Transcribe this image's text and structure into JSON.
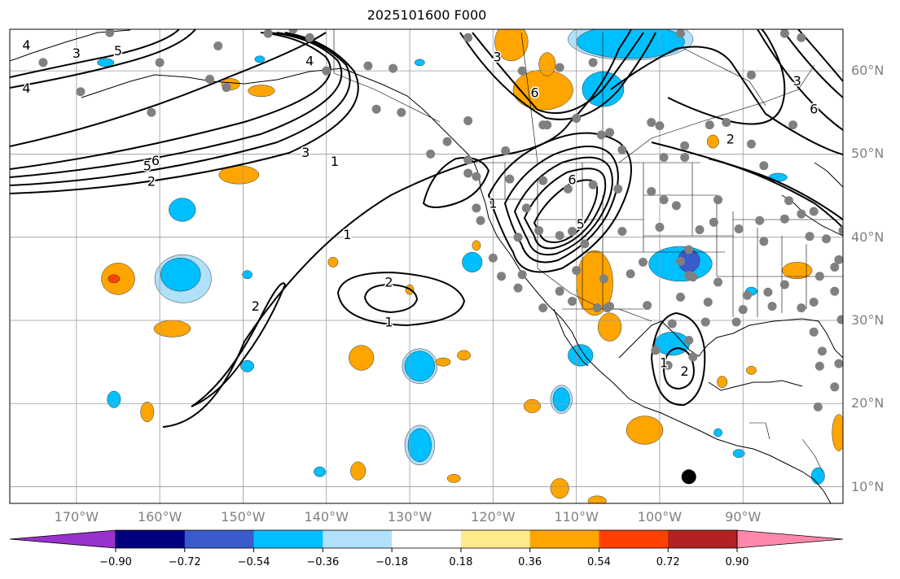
{
  "title": "2025101600 F000",
  "map": {
    "lat_range": [
      8,
      65
    ],
    "lon_range": [
      -178,
      -78
    ],
    "lat_ticks": [
      {
        "lat": 60,
        "label": "60°N"
      },
      {
        "lat": 50,
        "label": "50°N"
      },
      {
        "lat": 40,
        "label": "40°N"
      },
      {
        "lat": 30,
        "label": "30°N"
      },
      {
        "lat": 20,
        "label": "20°N"
      },
      {
        "lat": 10,
        "label": "10°N"
      }
    ],
    "lon_ticks": [
      {
        "lon": -170,
        "label": "170°W"
      },
      {
        "lon": -160,
        "label": "160°W"
      },
      {
        "lon": -150,
        "label": "150°W"
      },
      {
        "lon": -140,
        "label": "140°W"
      },
      {
        "lon": -130,
        "label": "130°W"
      },
      {
        "lon": -120,
        "label": "120°W"
      },
      {
        "lon": -110,
        "label": "110°W"
      },
      {
        "lon": -100,
        "label": "100°W"
      },
      {
        "lon": -90,
        "label": "90°W"
      }
    ],
    "grid": true,
    "contour_labels": [
      {
        "text": "4",
        "lon": -176,
        "lat": 63
      },
      {
        "text": "3",
        "lon": -170,
        "lat": 62
      },
      {
        "text": "5",
        "lon": -165,
        "lat": 62.3
      },
      {
        "text": "4",
        "lon": -176,
        "lat": 57.8
      },
      {
        "text": "4",
        "lon": -142,
        "lat": 61.1
      },
      {
        "text": "5",
        "lon": -161.5,
        "lat": 48.5
      },
      {
        "text": "6",
        "lon": -160.5,
        "lat": 49.1
      },
      {
        "text": "2",
        "lon": -161,
        "lat": 46.6
      },
      {
        "text": "3",
        "lon": -142.5,
        "lat": 50.1
      },
      {
        "text": "1",
        "lon": -139,
        "lat": 49
      },
      {
        "text": "1",
        "lon": -137.5,
        "lat": 40.2
      },
      {
        "text": "2",
        "lon": -148.5,
        "lat": 31.6
      },
      {
        "text": "2",
        "lon": -132.5,
        "lat": 34.5
      },
      {
        "text": "1",
        "lon": -132.5,
        "lat": 29.7
      },
      {
        "text": "3",
        "lon": -119.5,
        "lat": 61.6
      },
      {
        "text": "6",
        "lon": -115,
        "lat": 57.3
      },
      {
        "text": "1",
        "lon": -120,
        "lat": 44
      },
      {
        "text": "6",
        "lon": -110.5,
        "lat": 46.8
      },
      {
        "text": "5",
        "lon": -109.5,
        "lat": 41.5
      },
      {
        "text": "2",
        "lon": -91.5,
        "lat": 51.7
      },
      {
        "text": "3",
        "lon": -83.5,
        "lat": 58.7
      },
      {
        "text": "6",
        "lon": -81.5,
        "lat": 55.3
      },
      {
        "text": "1",
        "lon": -99.5,
        "lat": 24.8
      },
      {
        "text": "2",
        "lon": -97,
        "lat": 23.8
      }
    ],
    "shaded_regions": [
      {
        "level": 0.45,
        "lon": -165,
        "lat": 35,
        "rx": 2,
        "ry": 1.9
      },
      {
        "level": 0.63,
        "lon": -165.5,
        "lat": 35,
        "rx": 0.7,
        "ry": 0.5
      },
      {
        "level": -0.45,
        "lon": -157.5,
        "lat": 35.5,
        "rx": 2.4,
        "ry": 2
      },
      {
        "level": -0.27,
        "lon": -157.2,
        "lat": 35,
        "rx": 3.4,
        "ry": 2.9
      },
      {
        "level": -0.45,
        "lon": -157.3,
        "lat": 43.3,
        "rx": 1.6,
        "ry": 1.4
      },
      {
        "level": 0.45,
        "lon": -150.5,
        "lat": 47.5,
        "rx": 2.4,
        "ry": 1.1
      },
      {
        "level": 0.45,
        "lon": -158.5,
        "lat": 29,
        "rx": 2.2,
        "ry": 1
      },
      {
        "level": -0.45,
        "lon": -165.5,
        "lat": 20.5,
        "rx": 0.8,
        "ry": 1
      },
      {
        "level": 0.45,
        "lon": -161.5,
        "lat": 19,
        "rx": 0.8,
        "ry": 1.2
      },
      {
        "level": -0.45,
        "lon": -149.5,
        "lat": 24.5,
        "rx": 0.8,
        "ry": 0.7
      },
      {
        "level": -0.45,
        "lon": -149.5,
        "lat": 35.5,
        "rx": 0.6,
        "ry": 0.5
      },
      {
        "level": 0.45,
        "lon": -135.8,
        "lat": 25.5,
        "rx": 1.5,
        "ry": 1.5
      },
      {
        "level": -0.45,
        "lon": -128.8,
        "lat": 24.5,
        "rx": 1.8,
        "ry": 1.8
      },
      {
        "level": -0.27,
        "lon": -128.8,
        "lat": 24.5,
        "rx": 2.1,
        "ry": 2.1
      },
      {
        "level": 0.45,
        "lon": -123.5,
        "lat": 25.8,
        "rx": 0.8,
        "ry": 0.6
      },
      {
        "level": 0.45,
        "lon": -126,
        "lat": 25,
        "rx": 0.9,
        "ry": 0.5
      },
      {
        "level": -0.45,
        "lon": -128.8,
        "lat": 15,
        "rx": 1.4,
        "ry": 2
      },
      {
        "level": -0.27,
        "lon": -128.8,
        "lat": 15,
        "rx": 1.8,
        "ry": 2.4
      },
      {
        "level": 0.45,
        "lon": -136.2,
        "lat": 11.9,
        "rx": 0.9,
        "ry": 1.1
      },
      {
        "level": 0.45,
        "lon": -124.7,
        "lat": 11,
        "rx": 0.8,
        "ry": 0.5
      },
      {
        "level": -0.45,
        "lon": -140.8,
        "lat": 11.8,
        "rx": 0.7,
        "ry": 0.6
      },
      {
        "level": 0.45,
        "lon": -139.2,
        "lat": 37,
        "rx": 0.6,
        "ry": 0.6
      },
      {
        "level": 0.45,
        "lon": -130,
        "lat": 33.7,
        "rx": 0.5,
        "ry": 0.6
      },
      {
        "level": -0.45,
        "lon": -122.5,
        "lat": 37,
        "rx": 1.2,
        "ry": 1.2
      },
      {
        "level": 0.45,
        "lon": -122,
        "lat": 39,
        "rx": 0.5,
        "ry": 0.6
      },
      {
        "level": 0.45,
        "lon": -107.8,
        "lat": 34.5,
        "rx": 2.2,
        "ry": 3.9
      },
      {
        "level": 0.45,
        "lon": -106,
        "lat": 29.2,
        "rx": 1.4,
        "ry": 1.7
      },
      {
        "level": -0.45,
        "lon": -97.5,
        "lat": 36.8,
        "rx": 3.8,
        "ry": 2.1
      },
      {
        "level": -0.63,
        "lon": -96.5,
        "lat": 37.2,
        "rx": 1.3,
        "ry": 1.4
      },
      {
        "level": -0.45,
        "lon": -98.5,
        "lat": 27.2,
        "rx": 2.1,
        "ry": 1.4
      },
      {
        "level": -0.45,
        "lon": -109.5,
        "lat": 25.8,
        "rx": 1.5,
        "ry": 1.3
      },
      {
        "level": -0.45,
        "lon": -111.8,
        "lat": 20.5,
        "rx": 1,
        "ry": 1.4
      },
      {
        "level": -0.27,
        "lon": -111.8,
        "lat": 20.5,
        "rx": 1.3,
        "ry": 1.7
      },
      {
        "level": 0.45,
        "lon": -115.3,
        "lat": 19.7,
        "rx": 1,
        "ry": 0.8
      },
      {
        "level": 0.45,
        "lon": -101.8,
        "lat": 16.8,
        "rx": 2.2,
        "ry": 1.7
      },
      {
        "level": 0.45,
        "lon": -112,
        "lat": 9.8,
        "rx": 1.1,
        "ry": 1.2
      },
      {
        "level": 0.45,
        "lon": -107.5,
        "lat": 8.3,
        "rx": 1.1,
        "ry": 0.6
      },
      {
        "level": -0.45,
        "lon": -93,
        "lat": 16.5,
        "rx": 0.5,
        "ry": 0.5
      },
      {
        "level": -0.45,
        "lon": -90.5,
        "lat": 14,
        "rx": 0.7,
        "ry": 0.5
      },
      {
        "level": -0.45,
        "lon": -81,
        "lat": 11.3,
        "rx": 0.8,
        "ry": 1
      },
      {
        "level": -0.45,
        "lon": -89,
        "lat": 33.5,
        "rx": 0.7,
        "ry": 0.5
      },
      {
        "level": 0.45,
        "lon": -92.5,
        "lat": 22.6,
        "rx": 0.6,
        "ry": 0.7
      },
      {
        "level": 0.45,
        "lon": -89,
        "lat": 24,
        "rx": 0.6,
        "ry": 0.5
      },
      {
        "level": 0.45,
        "lon": -83.5,
        "lat": 36,
        "rx": 1.8,
        "ry": 1
      },
      {
        "level": 0.45,
        "lon": -78.5,
        "lat": 16.5,
        "rx": 0.8,
        "ry": 2.2
      },
      {
        "level": -0.45,
        "lon": -85.8,
        "lat": 47.2,
        "rx": 1.1,
        "ry": 0.5
      },
      {
        "level": 0.45,
        "lon": -93.6,
        "lat": 51.5,
        "rx": 0.7,
        "ry": 0.8
      },
      {
        "level": 0.45,
        "lon": -117.8,
        "lat": 63.5,
        "rx": 2,
        "ry": 2.3
      },
      {
        "level": 0.45,
        "lon": -114,
        "lat": 57.7,
        "rx": 3.6,
        "ry": 2.4
      },
      {
        "level": 0.45,
        "lon": -113.5,
        "lat": 60.8,
        "rx": 1,
        "ry": 1.4
      },
      {
        "level": -0.45,
        "lon": -103.5,
        "lat": 63.5,
        "rx": 6.5,
        "ry": 2
      },
      {
        "level": -0.27,
        "lon": -103.5,
        "lat": 63.8,
        "rx": 7.5,
        "ry": 2.5
      },
      {
        "level": -0.45,
        "lon": -106.8,
        "lat": 57.8,
        "rx": 2.5,
        "ry": 2.1
      },
      {
        "level": 0.45,
        "lon": -147.8,
        "lat": 57.6,
        "rx": 1.6,
        "ry": 0.7
      },
      {
        "level": 0.45,
        "lon": -151.5,
        "lat": 58.4,
        "rx": 1.1,
        "ry": 0.7
      },
      {
        "level": -0.45,
        "lon": -166.5,
        "lat": 61,
        "rx": 1,
        "ry": 0.5
      },
      {
        "level": -0.45,
        "lon": -148,
        "lat": 61.4,
        "rx": 0.6,
        "ry": 0.4
      },
      {
        "level": -0.45,
        "lon": -128.8,
        "lat": 61,
        "rx": 0.6,
        "ry": 0.4
      }
    ],
    "stations": [
      [
        -174,
        61
      ],
      [
        -166,
        64.6
      ],
      [
        -160,
        61
      ],
      [
        -153,
        63
      ],
      [
        -147,
        64.5
      ],
      [
        -144,
        65
      ],
      [
        -142,
        64
      ],
      [
        -169.5,
        57.5
      ],
      [
        -161,
        55
      ],
      [
        -154,
        59
      ],
      [
        -152,
        58
      ],
      [
        -140,
        60
      ],
      [
        -135,
        60.6
      ],
      [
        -132,
        60.3
      ],
      [
        -123,
        64
      ],
      [
        -116.5,
        60
      ],
      [
        -112,
        60.4
      ],
      [
        -108,
        61
      ],
      [
        -97.5,
        64.5
      ],
      [
        -85,
        64.5
      ],
      [
        -83,
        64
      ],
      [
        -89,
        59.5
      ],
      [
        -134,
        55.4
      ],
      [
        -131,
        55
      ],
      [
        -123,
        54
      ],
      [
        -125.5,
        51.5
      ],
      [
        -127.5,
        50
      ],
      [
        -123,
        49.3
      ],
      [
        -118.5,
        50.4
      ],
      [
        -114,
        53.5
      ],
      [
        -113.5,
        53.5
      ],
      [
        -110,
        54.3
      ],
      [
        -107,
        52.3
      ],
      [
        -106,
        52.6
      ],
      [
        -104.5,
        50.5
      ],
      [
        -101,
        53.8
      ],
      [
        -100,
        53.4
      ],
      [
        -97,
        51
      ],
      [
        -99.5,
        49.6
      ],
      [
        -97,
        49.6
      ],
      [
        -94,
        53.5
      ],
      [
        -92,
        53.8
      ],
      [
        -89,
        51.2
      ],
      [
        -84,
        53.5
      ],
      [
        -87.5,
        48.6
      ],
      [
        -123,
        47.7
      ],
      [
        -122,
        47.3
      ],
      [
        -118,
        47
      ],
      [
        -116,
        43.5
      ],
      [
        -114,
        46.8
      ],
      [
        -111,
        45.8
      ],
      [
        -108,
        46.3
      ],
      [
        -105,
        45.8
      ],
      [
        -101,
        45.5
      ],
      [
        -99.5,
        44.5
      ],
      [
        -122,
        43.5
      ],
      [
        -121.5,
        42
      ],
      [
        -117,
        40
      ],
      [
        -114.5,
        40.8
      ],
      [
        -112,
        40.2
      ],
      [
        -110.5,
        40.7
      ],
      [
        -109,
        39.2
      ],
      [
        -104.5,
        40.7
      ],
      [
        -100,
        41.2
      ],
      [
        -98,
        43.8
      ],
      [
        -95.2,
        40.9
      ],
      [
        -93,
        44.5
      ],
      [
        -96.5,
        38.5
      ],
      [
        -93.5,
        41.8
      ],
      [
        -90.5,
        41
      ],
      [
        -88,
        42
      ],
      [
        -85,
        42.2
      ],
      [
        -83,
        42.8
      ],
      [
        -81.5,
        43.1
      ],
      [
        -82,
        40.1
      ],
      [
        -87.5,
        39.5
      ],
      [
        -80,
        39.8
      ],
      [
        -78,
        40.8
      ],
      [
        -120,
        37.5
      ],
      [
        -119,
        35.3
      ],
      [
        -117,
        33.9
      ],
      [
        -116.5,
        35.5
      ],
      [
        -112,
        33.5
      ],
      [
        -110.5,
        32.3
      ],
      [
        -106.7,
        35
      ],
      [
        -103.5,
        35.6
      ],
      [
        -101.5,
        31.8
      ],
      [
        -97.5,
        32.8
      ],
      [
        -98.5,
        29.6
      ],
      [
        -94.2,
        32.2
      ],
      [
        -93,
        34.6
      ],
      [
        -89.5,
        33
      ],
      [
        -87,
        33.4
      ],
      [
        -85,
        34.3
      ],
      [
        -90.8,
        29.8
      ],
      [
        -90,
        31.3
      ],
      [
        -86.5,
        31.7
      ],
      [
        -83,
        31.5
      ],
      [
        -81.5,
        32.2
      ],
      [
        -79,
        33.5
      ],
      [
        -81.5,
        28.6
      ],
      [
        -80.5,
        26.3
      ],
      [
        -80.8,
        24.5
      ],
      [
        -78.5,
        24.8
      ],
      [
        -94.5,
        29.8
      ],
      [
        -96.5,
        27.6
      ],
      [
        -96,
        25.6
      ],
      [
        -99,
        24.6
      ],
      [
        -100.5,
        26.4
      ],
      [
        -106.3,
        31.5
      ],
      [
        -106,
        31.7
      ],
      [
        -114,
        31.5
      ],
      [
        -107.5,
        31.5
      ],
      [
        -81,
        19.6
      ],
      [
        -79,
        22
      ],
      [
        -78.5,
        37.3
      ],
      [
        -79,
        36.4
      ],
      [
        -80.8,
        35.3
      ],
      [
        -110,
        36
      ],
      [
        -97.5,
        37.1
      ],
      [
        -96.5,
        35.4
      ],
      [
        -96,
        35.2
      ],
      [
        -102,
        37
      ],
      [
        -84.5,
        44.4
      ],
      [
        -78.2,
        30.1
      ]
    ],
    "marker": {
      "lon": -96.5,
      "lat": 11.2
    }
  },
  "colorbar": {
    "colors": [
      "#9932cc",
      "#000080",
      "#3a5bcc",
      "#00bfff",
      "#b0e0fa",
      "#ffffff",
      "#ffeb8a",
      "#ffa500",
      "#ff4000",
      "#b22222",
      "#ff88aa"
    ],
    "ticks": [
      {
        "value": -0.9,
        "label": "−0.90"
      },
      {
        "value": -0.72,
        "label": "−0.72"
      },
      {
        "value": -0.54,
        "label": "−0.54"
      },
      {
        "value": -0.36,
        "label": "−0.36"
      },
      {
        "value": -0.18,
        "label": "−0.18"
      },
      {
        "value": 0.18,
        "label": "0.18"
      },
      {
        "value": 0.36,
        "label": "0.36"
      },
      {
        "value": 0.54,
        "label": "0.54"
      },
      {
        "value": 0.72,
        "label": "0.72"
      },
      {
        "value": 0.9,
        "label": "0.90"
      }
    ]
  }
}
